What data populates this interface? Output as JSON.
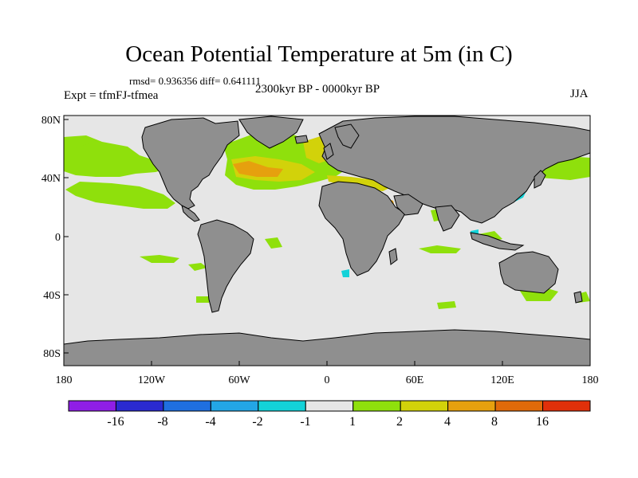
{
  "title": "Ocean Potential Temperature at 5m (in C)",
  "stats": "rmsd= 0.936356 diff= 0.641111",
  "experiment": "Expt = tfmFJ-tfmea",
  "period": "2300kyr BP - 0000kyr BP",
  "season": "JJA",
  "colors": {
    "land": "#8f8f8f",
    "ocean_neutral": "#e6e6e6",
    "coast": "#000000"
  },
  "axes": {
    "x_ticks": [
      "180",
      "120W",
      "60W",
      "0",
      "60E",
      "120E",
      "180"
    ],
    "y_ticks": [
      "80N",
      "40N",
      "0",
      "40S",
      "80S"
    ]
  },
  "colorbar": {
    "labels": [
      "-16",
      "-8",
      "-4",
      "-2",
      "-1",
      "1",
      "2",
      "4",
      "8",
      "16"
    ],
    "colors": [
      "#8f1ee6",
      "#2a2ad0",
      "#1f6fe0",
      "#23a6e6",
      "#13d2d8",
      "#e6e6e6",
      "#8fe00c",
      "#d2d20a",
      "#e6a00e",
      "#e06a0a",
      "#e0300a"
    ]
  },
  "anomaly_patches": [
    {
      "color": "#d2d20a",
      "region": "North Atlantic"
    },
    {
      "color": "#e6a00e",
      "region": "North Atlantic"
    },
    {
      "color": "#8fe00c",
      "region": "North Pacific"
    },
    {
      "color": "#8fe00c",
      "region": "South Pacific"
    },
    {
      "color": "#13d2d8",
      "region": "Japan"
    },
    {
      "color": "#d2d20a",
      "region": "Mediterranean"
    },
    {
      "color": "#8fe00c",
      "region": "Australia"
    }
  ]
}
